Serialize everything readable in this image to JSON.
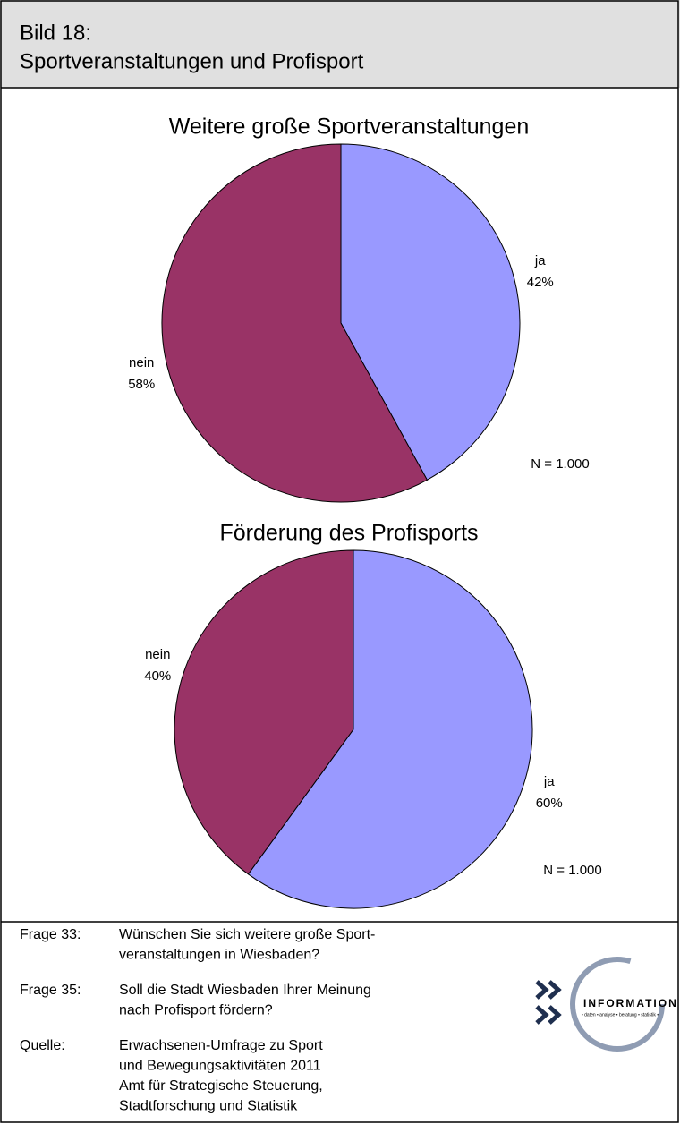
{
  "header": {
    "title": [
      "Bild 18:",
      "Sportveranstaltungen und Profisport"
    ]
  },
  "chart_data": [
    {
      "type": "pie",
      "title": "Weitere große Sportveranstaltungen",
      "categories": [
        "ja",
        "nein"
      ],
      "values": [
        42,
        58
      ],
      "value_labels": [
        "42%",
        "58%"
      ],
      "colors": [
        "#9999ff",
        "#993366"
      ],
      "note": "N = 1.000"
    },
    {
      "type": "pie",
      "title": "Förderung des Profisports",
      "categories": [
        "ja",
        "nein"
      ],
      "values": [
        60,
        40
      ],
      "value_labels": [
        "60%",
        "40%"
      ],
      "colors": [
        "#9999ff",
        "#993366"
      ],
      "note": "N = 1.000"
    }
  ],
  "footer": {
    "items": [
      {
        "label": "Frage 33:",
        "lines": [
          "Wünschen Sie sich weitere große Sport-",
          "veranstaltungen in Wiesbaden?"
        ]
      },
      {
        "label": "Frage 35:",
        "lines": [
          "Soll die Stadt Wiesbaden Ihrer Meinung",
          "nach Profisport fördern?"
        ]
      },
      {
        "label": "Quelle:",
        "lines": [
          "Erwachsenen-Umfrage zu Sport",
          "und Bewegungsaktivitäten 2011",
          "Amt für Strategische Steuerung,",
          "Stadtforschung und Statistik"
        ]
      }
    ]
  },
  "logo": {
    "name": "INFORMATION",
    "tagline": "• daten • analyse • beratung • statistik •"
  }
}
